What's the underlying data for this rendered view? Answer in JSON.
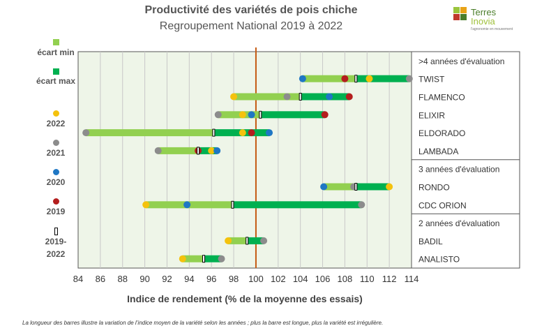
{
  "header": {
    "title": "Productivité des variétés  de pois chiche",
    "subtitle": "Regroupement  National 2019 à 2022"
  },
  "logo": {
    "line1": "Terres",
    "line2": "Inovia",
    "tagline": "l'agronomie en mouvement",
    "colors": [
      "#9bc53d",
      "#e8a317",
      "#c0392b",
      "#4a7d2a"
    ]
  },
  "legend": {
    "items": [
      {
        "label": "écart min",
        "symbol": "square",
        "color": "#92d050"
      },
      {
        "label": "écart max",
        "symbol": "square",
        "color": "#00b050"
      },
      {
        "label": "2022",
        "symbol": "dot",
        "color": "#f4c20d"
      },
      {
        "label": "2021",
        "symbol": "dot",
        "color": "#8c8c8c"
      },
      {
        "label": "2020",
        "symbol": "dot",
        "color": "#1f77c4"
      },
      {
        "label": "2019",
        "symbol": "dot",
        "color": "#b41e1e"
      },
      {
        "label": "2019-2022",
        "symbol": "bar",
        "color": "#000000"
      }
    ]
  },
  "footnote": "La longueur des barres illustre la variation de l’indice moyen de la variété selon les années ; plus la barre est longue, plus la variété est irrégulière.",
  "colors": {
    "plot_bg": "#eef5e8",
    "grid": "#c8c8c8",
    "ref_line": "#c55a11",
    "min_bar": "#92d050",
    "max_bar": "#00b050",
    "y2022": "#f4c20d",
    "y2021": "#8c8c8c",
    "y2020": "#1f77c4",
    "y2019": "#b41e1e"
  },
  "chart_data": {
    "type": "range-bar",
    "title": "Productivité des variétés  de pois chiche",
    "subtitle": "Regroupement  National 2019 à 2022",
    "xlabel": "Indice de rendement (% de la moyenne des essais)",
    "xlim": [
      84,
      114
    ],
    "xticks": [
      "84",
      "86",
      "88",
      "90",
      "92",
      "94",
      "96",
      "98",
      "100",
      "102",
      "104",
      "106",
      "108",
      "110",
      "112",
      "114"
    ],
    "reference_line": 100,
    "grid": true,
    "groups": [
      {
        "label": ">4 années d'évaluation",
        "varieties": [
          {
            "name": "TWIST",
            "y2022": 110.2,
            "y2021": 113.8,
            "y2020": 104.2,
            "y2019": 108.0,
            "mean": 109.0
          },
          {
            "name": "FLAMENCO",
            "y2022": 98.0,
            "y2021": 102.8,
            "y2020": 106.6,
            "y2019": 108.4,
            "mean": 104.0
          },
          {
            "name": "ELIXIR",
            "y2022": 98.8,
            "y2021": 96.6,
            "y2020": 99.6,
            "y2019": 106.2,
            "mean": 100.4
          },
          {
            "name": "ELDORADO",
            "y2022": 98.8,
            "y2021": 84.7,
            "y2020": 101.2,
            "y2019": 99.6,
            "mean": 96.2
          },
          {
            "name": "LAMBADA",
            "y2022": 96.0,
            "y2021": 91.2,
            "y2020": 96.5,
            "y2019": 94.8,
            "mean": 94.8
          }
        ]
      },
      {
        "label": "3 années d'évaluation",
        "varieties": [
          {
            "name": "RONDO",
            "y2022": 112.0,
            "y2021": 108.8,
            "y2020": 106.1,
            "y2019": null,
            "mean": 109.0
          },
          {
            "name": "CDC ORION",
            "y2022": 90.1,
            "y2021": 109.5,
            "y2020": 93.8,
            "y2019": null,
            "mean": 97.9
          }
        ]
      },
      {
        "label": "2 années d'évaluation",
        "varieties": [
          {
            "name": "BADIL",
            "y2022": 97.5,
            "y2021": 100.7,
            "y2020": null,
            "y2019": null,
            "mean": 99.2
          },
          {
            "name": "ANALISTO",
            "y2022": 93.4,
            "y2021": 96.9,
            "y2020": null,
            "y2019": null,
            "mean": 95.3
          }
        ]
      }
    ]
  }
}
